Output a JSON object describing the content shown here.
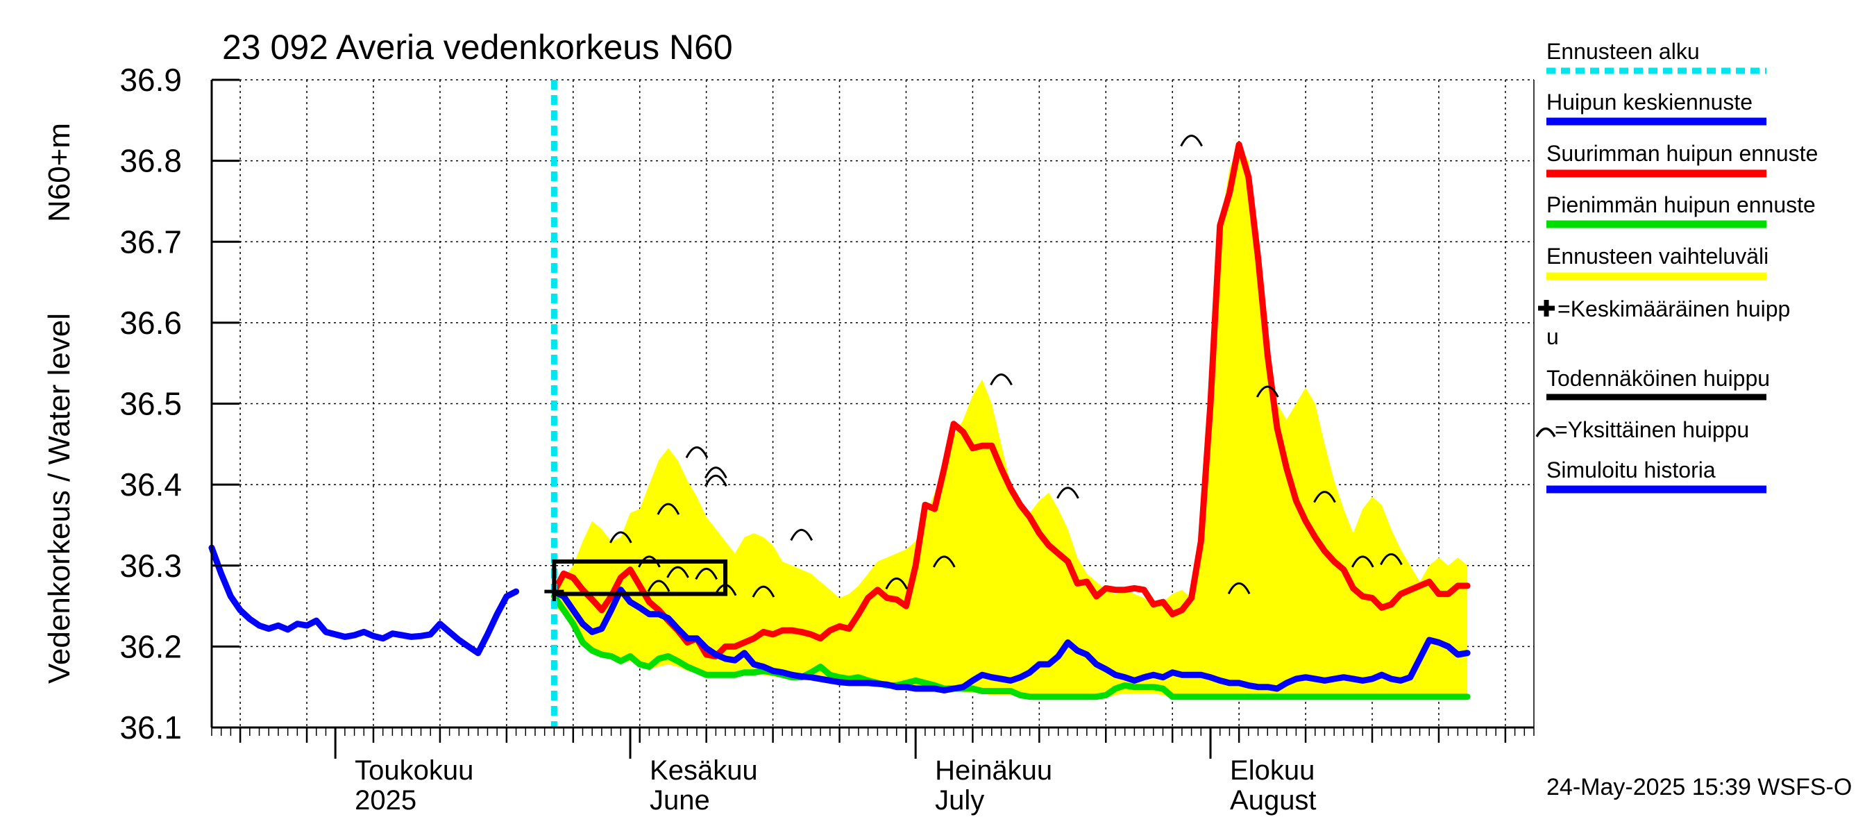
{
  "chart_data": {
    "type": "line",
    "title": "23 092 Averia vedenkorkeus N60",
    "ylabel_line1": "Vedenkorkeus / Water level",
    "ylabel_line2": "N60+m",
    "ylim": [
      36.1,
      36.9
    ],
    "yticks": [
      "36.1",
      "36.2",
      "36.3",
      "36.4",
      "36.5",
      "36.6",
      "36.7",
      "36.8",
      "36.9"
    ],
    "x_range": [
      "2025-04-18",
      "2025-09-04"
    ],
    "grid": true,
    "months": [
      {
        "start": "2025-05-01",
        "label1": "Toukokuu",
        "label2": "2025"
      },
      {
        "start": "2025-06-01",
        "label1": "Kesäkuu",
        "label2": "June"
      },
      {
        "start": "2025-07-01",
        "label1": "Heinäkuu",
        "label2": "July"
      },
      {
        "start": "2025-08-01",
        "label1": "Elokuu",
        "label2": "August"
      }
    ],
    "forecast_start": "2025-05-24",
    "timestamp": "24-May-2025 15:39 WSFS-O",
    "legend": {
      "forecast_start": "Ennusteen alku",
      "mean_peak": "Huipun keskiennuste",
      "max_peak": "Suurimman huipun ennuste",
      "min_peak": "Pienimmän huipun ennuste",
      "range": "Ennusteen vaihteluväli",
      "avg_peak_l1": "=Keskimääräinen huipp",
      "avg_peak_l2": "u",
      "probable_peak": "Todennäköinen huippu",
      "single_peak": "=Yksittäinen huippu",
      "history": "Simuloitu historia"
    },
    "colors": {
      "history": "#0000ff",
      "mean": "#0000ff",
      "max": "#ff0000",
      "min": "#00dd00",
      "range": "#ffff00",
      "forecast_start": "#00e5ee",
      "probable": "#000000"
    },
    "series": [
      {
        "name": "Simuloitu historia",
        "key": "history",
        "x_start": "2025-04-18",
        "step_days": 1,
        "values": [
          36.322,
          36.29,
          36.262,
          36.245,
          36.234,
          36.226,
          36.222,
          36.226,
          36.221,
          36.228,
          36.226,
          36.232,
          36.218,
          36.215,
          36.212,
          36.214,
          36.218,
          36.213,
          36.21,
          36.216,
          36.214,
          36.212,
          36.213,
          36.215,
          36.228,
          36.218,
          36.208,
          36.2,
          36.192,
          36.215,
          36.24,
          36.262,
          36.268
        ]
      },
      {
        "name": "Huipun keskiennuste",
        "key": "mean",
        "x_start": "2025-05-24",
        "step_days": 1,
        "values": [
          36.268,
          36.262,
          36.245,
          36.228,
          36.218,
          36.222,
          36.245,
          36.27,
          36.255,
          36.248,
          36.24,
          36.24,
          36.235,
          36.222,
          36.21,
          36.21,
          36.198,
          36.19,
          36.185,
          36.183,
          36.192,
          36.178,
          36.175,
          36.17,
          36.168,
          36.165,
          36.163,
          36.162,
          36.16,
          36.158,
          36.156,
          36.155,
          36.155,
          36.155,
          36.154,
          36.153,
          36.15,
          36.15,
          36.148,
          36.148,
          36.148,
          36.146,
          36.148,
          36.15,
          36.158,
          36.165,
          36.162,
          36.16,
          36.158,
          36.162,
          36.168,
          36.178,
          36.178,
          36.188,
          36.205,
          36.195,
          36.19,
          36.178,
          36.172,
          36.165,
          36.162,
          36.158,
          36.162,
          36.165,
          36.162,
          36.168,
          36.165,
          36.165,
          36.165,
          36.162,
          36.158,
          36.155,
          36.155,
          36.152,
          36.15,
          36.15,
          36.148,
          36.155,
          36.16,
          36.162,
          36.16,
          36.158,
          36.16,
          36.162,
          36.16,
          36.158,
          36.16,
          36.165,
          36.16,
          36.158,
          36.162,
          36.185,
          36.208,
          36.205,
          36.2,
          36.19,
          36.192
        ]
      },
      {
        "name": "Suurimman huipun ennuste",
        "key": "max",
        "x_start": "2025-05-24",
        "step_days": 1,
        "values": [
          36.268,
          36.29,
          36.285,
          36.27,
          36.258,
          36.245,
          36.262,
          36.285,
          36.295,
          36.275,
          36.255,
          36.245,
          36.232,
          36.22,
          36.205,
          36.21,
          36.19,
          36.188,
          36.2,
          36.2,
          36.205,
          36.21,
          36.218,
          36.215,
          36.22,
          36.22,
          36.218,
          36.215,
          36.21,
          36.22,
          36.225,
          36.222,
          36.24,
          36.26,
          36.27,
          36.26,
          36.258,
          36.25,
          36.3,
          36.375,
          36.37,
          36.42,
          36.475,
          36.465,
          36.445,
          36.448,
          36.448,
          36.42,
          36.395,
          36.375,
          36.36,
          36.34,
          36.325,
          36.315,
          36.305,
          36.278,
          36.28,
          36.262,
          36.272,
          36.27,
          36.27,
          36.272,
          36.27,
          36.252,
          36.255,
          36.24,
          36.245,
          36.26,
          36.33,
          36.5,
          36.72,
          36.76,
          36.82,
          36.78,
          36.68,
          36.56,
          36.47,
          36.42,
          36.38,
          36.355,
          36.335,
          36.318,
          36.305,
          36.295,
          36.272,
          36.262,
          36.26,
          36.248,
          36.252,
          36.265,
          36.27,
          36.275,
          36.28,
          36.265,
          36.265,
          36.275,
          36.275
        ]
      },
      {
        "name": "Pienimmän huipun ennuste",
        "key": "min",
        "x_start": "2025-05-24",
        "step_days": 1,
        "values": [
          36.262,
          36.245,
          36.228,
          36.205,
          36.195,
          36.19,
          36.188,
          36.182,
          36.188,
          36.178,
          36.175,
          36.185,
          36.188,
          36.182,
          36.175,
          36.17,
          36.165,
          36.165,
          36.165,
          36.165,
          36.168,
          36.168,
          36.17,
          36.168,
          36.165,
          36.162,
          36.162,
          36.168,
          36.175,
          36.165,
          36.162,
          36.16,
          36.162,
          36.158,
          36.155,
          36.152,
          36.152,
          36.155,
          36.158,
          36.155,
          36.152,
          36.148,
          36.148,
          36.148,
          36.148,
          36.145,
          36.145,
          36.145,
          36.145,
          36.14,
          36.138,
          36.138,
          36.138,
          36.138,
          36.138,
          36.138,
          36.138,
          36.138,
          36.14,
          36.148,
          36.152,
          36.15,
          36.15,
          36.15,
          36.148,
          36.138,
          36.138,
          36.138,
          36.138,
          36.138,
          36.138,
          36.138,
          36.138,
          36.138,
          36.138,
          36.138,
          36.138,
          36.138,
          36.138,
          36.138,
          36.138,
          36.138,
          36.138,
          36.138,
          36.138,
          36.138,
          36.138,
          36.138,
          36.138,
          36.138,
          36.138,
          36.138,
          36.138,
          36.138,
          36.138,
          36.138,
          36.138
        ]
      },
      {
        "name": "Ennusteen vaihteluväli",
        "key": "range_upper",
        "x_start": "2025-05-24",
        "step_days": 1,
        "values": [
          36.268,
          36.285,
          36.3,
          36.33,
          36.355,
          36.345,
          36.33,
          36.335,
          36.365,
          36.37,
          36.4,
          36.43,
          36.445,
          36.43,
          36.405,
          36.385,
          36.36,
          36.345,
          36.33,
          36.315,
          36.335,
          36.34,
          36.335,
          36.325,
          36.305,
          36.3,
          36.295,
          36.29,
          36.28,
          36.27,
          36.26,
          36.265,
          36.275,
          36.29,
          36.305,
          36.31,
          36.315,
          36.32,
          36.33,
          36.36,
          36.39,
          36.42,
          36.46,
          36.48,
          36.51,
          36.53,
          36.5,
          36.45,
          36.4,
          36.375,
          36.365,
          36.38,
          36.39,
          36.37,
          36.345,
          36.31,
          36.29,
          36.28,
          36.27,
          36.265,
          36.27,
          36.265,
          36.26,
          36.25,
          36.255,
          36.265,
          36.27,
          36.26,
          36.33,
          36.5,
          36.72,
          36.79,
          36.82,
          36.8,
          36.7,
          36.58,
          36.5,
          36.48,
          36.5,
          36.52,
          36.5,
          36.45,
          36.405,
          36.37,
          36.34,
          36.37,
          36.385,
          36.375,
          36.345,
          36.32,
          36.3,
          36.28,
          36.3,
          36.31,
          36.3,
          36.31,
          36.3
        ]
      },
      {
        "name": "Ennusteen vaihteluväli",
        "key": "range_lower",
        "x_start": "2025-05-24",
        "step_days": 1,
        "values": [
          36.25,
          36.24,
          36.22,
          36.205,
          36.195,
          36.19,
          36.188,
          36.18,
          36.182,
          36.175,
          36.172,
          36.175,
          36.178,
          36.175,
          36.17,
          36.168,
          36.165,
          36.163,
          36.163,
          36.163,
          36.165,
          36.165,
          36.165,
          36.163,
          36.162,
          36.16,
          36.16,
          36.162,
          36.165,
          36.16,
          36.158,
          36.156,
          36.156,
          36.154,
          36.152,
          36.15,
          36.15,
          36.15,
          36.152,
          36.15,
          36.148,
          36.145,
          36.145,
          36.144,
          36.143,
          36.142,
          36.14,
          36.14,
          36.14,
          36.138,
          36.137,
          36.136,
          36.136,
          36.136,
          36.136,
          36.136,
          36.136,
          36.136,
          36.137,
          36.14,
          36.142,
          36.142,
          36.142,
          36.142,
          36.14,
          36.136,
          36.136,
          36.136,
          36.136,
          36.136,
          36.136,
          36.136,
          36.136,
          36.136,
          36.136,
          36.136,
          36.136,
          36.136,
          36.136,
          36.136,
          36.136,
          36.136,
          36.136,
          36.136,
          36.136,
          36.136,
          36.136,
          36.136,
          36.136,
          36.136,
          36.136,
          36.136,
          36.136,
          36.136,
          36.136,
          36.136,
          36.136
        ]
      }
    ],
    "single_peaks": [
      {
        "x": "2025-05-31",
        "y": 36.335
      },
      {
        "x": "2025-06-03",
        "y": 36.305
      },
      {
        "x": "2025-06-04",
        "y": 36.275
      },
      {
        "x": "2025-06-05",
        "y": 36.37
      },
      {
        "x": "2025-06-06",
        "y": 36.292
      },
      {
        "x": "2025-06-08",
        "y": 36.44
      },
      {
        "x": "2025-06-09",
        "y": 36.29
      },
      {
        "x": "2025-06-10",
        "y": 36.415
      },
      {
        "x": "2025-06-10",
        "y": 36.405
      },
      {
        "x": "2025-06-11",
        "y": 36.27
      },
      {
        "x": "2025-06-15",
        "y": 36.268
      },
      {
        "x": "2025-06-19",
        "y": 36.338
      },
      {
        "x": "2025-06-29",
        "y": 36.278
      },
      {
        "x": "2025-07-04",
        "y": 36.305
      },
      {
        "x": "2025-07-10",
        "y": 36.53
      },
      {
        "x": "2025-07-17",
        "y": 36.39
      },
      {
        "x": "2025-07-30",
        "y": 36.825
      },
      {
        "x": "2025-08-04",
        "y": 36.272
      },
      {
        "x": "2025-08-07",
        "y": 36.515
      },
      {
        "x": "2025-08-13",
        "y": 36.385
      },
      {
        "x": "2025-08-17",
        "y": 36.305
      },
      {
        "x": "2025-08-20",
        "y": 36.308
      }
    ],
    "probable_peak_box": {
      "x_from": "2025-05-24",
      "x_to": "2025-06-11",
      "y_from": 36.265,
      "y_to": 36.305
    },
    "avg_peak": {
      "x": "2025-05-24",
      "y": 36.268
    }
  }
}
